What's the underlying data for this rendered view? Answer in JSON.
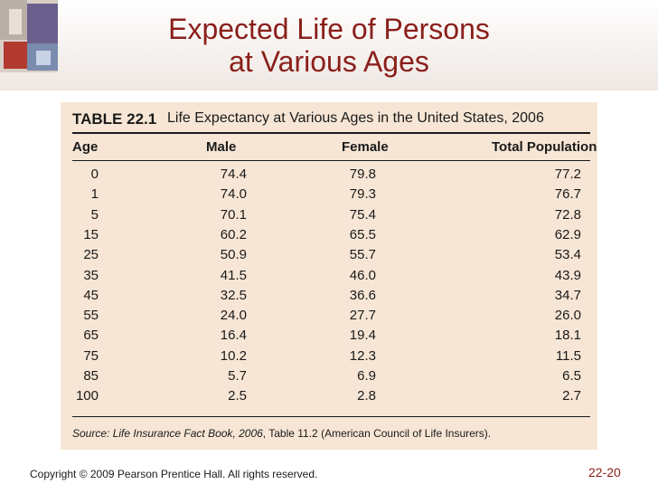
{
  "slide": {
    "title_line1": "Expected Life of Persons",
    "title_line2": "at Various Ages",
    "copyright": "Copyright © 2009 Pearson Prentice Hall. All rights reserved.",
    "page_number": "22-20"
  },
  "table": {
    "label": "TABLE 22.1",
    "caption": "Life Expectancy at Various Ages in the United States, 2006",
    "headers": [
      "Age",
      "Male",
      "Female",
      "Total Population"
    ],
    "rows": [
      [
        "0",
        "74.4",
        "79.8",
        "77.2"
      ],
      [
        "1",
        "74.0",
        "79.3",
        "76.7"
      ],
      [
        "5",
        "70.1",
        "75.4",
        "72.8"
      ],
      [
        "15",
        "60.2",
        "65.5",
        "62.9"
      ],
      [
        "25",
        "50.9",
        "55.7",
        "53.4"
      ],
      [
        "35",
        "41.5",
        "46.0",
        "43.9"
      ],
      [
        "45",
        "32.5",
        "36.6",
        "34.7"
      ],
      [
        "55",
        "24.0",
        "27.7",
        "26.0"
      ],
      [
        "65",
        "16.4",
        "19.4",
        "18.1"
      ],
      [
        "75",
        "10.2",
        "12.3",
        "11.5"
      ],
      [
        "85",
        "5.7",
        "6.9",
        "6.5"
      ],
      [
        "100",
        "2.5",
        "2.8",
        "2.7"
      ]
    ],
    "source_prefix": "Source: Life Insurance Fact Book, 2006",
    "source_suffix": ", Table 11.2 (American Council of Life Insurers)."
  }
}
